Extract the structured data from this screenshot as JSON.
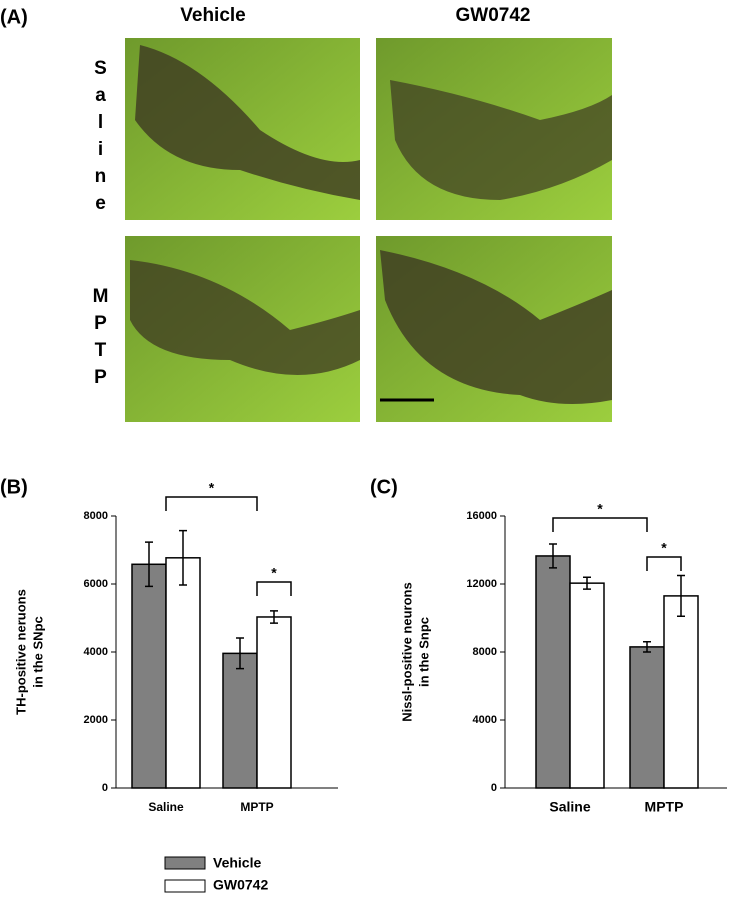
{
  "panel_a": {
    "label": "(A)",
    "columns": [
      "Vehicle",
      "GW0742"
    ],
    "rows": [
      "Saline",
      "MPTP"
    ]
  },
  "chart_data": [
    {
      "type": "bar",
      "label": "(B)",
      "ylabel": [
        "TH-positive neruons",
        "in the SNpc"
      ],
      "categories": [
        "Saline",
        "MPTP"
      ],
      "series": [
        {
          "name": "Vehicle",
          "color": "#808080",
          "values": [
            6580,
            3960
          ],
          "errors": [
            650,
            450
          ]
        },
        {
          "name": "GW0742",
          "color": "#ffffff",
          "values": [
            6770,
            5030
          ],
          "errors": [
            800,
            180
          ]
        }
      ],
      "ylim": [
        0,
        8000
      ],
      "yticks": [
        0,
        2000,
        4000,
        6000,
        8000
      ],
      "annotations": [
        "*",
        "*"
      ]
    },
    {
      "type": "bar",
      "label": "(C)",
      "ylabel": [
        "Nissl-positive neurons",
        "in the Snpc"
      ],
      "categories": [
        "Saline",
        "MPTP"
      ],
      "series": [
        {
          "name": "Vehicle",
          "color": "#808080",
          "values": [
            13650,
            8300
          ],
          "errors": [
            700,
            300
          ]
        },
        {
          "name": "GW0742",
          "color": "#ffffff",
          "values": [
            12050,
            11300
          ],
          "errors": [
            350,
            1200
          ]
        }
      ],
      "ylim": [
        0,
        16000
      ],
      "yticks": [
        0,
        4000,
        8000,
        12000,
        16000
      ],
      "annotations": [
        "*",
        "*"
      ]
    }
  ]
}
